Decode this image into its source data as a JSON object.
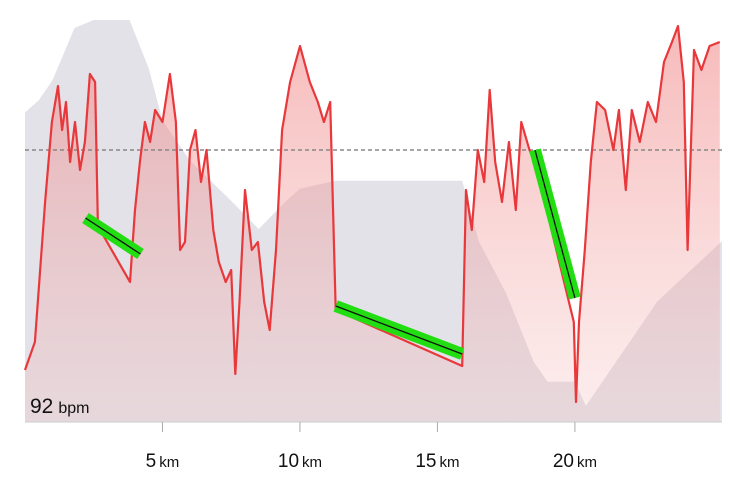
{
  "chart_data": {
    "type": "line",
    "xlim": [
      0,
      25.35
    ],
    "xticks": [
      5,
      10,
      15,
      20
    ],
    "x_unit": "km",
    "ylim": [
      90,
      190.5
    ],
    "y2lim": [
      0,
      100
    ],
    "reference_line": 158,
    "min_label": {
      "value": "92",
      "unit": "bpm"
    },
    "series": [
      {
        "color": "#e8383b",
        "x": [
          0,
          0.36,
          0.73,
          0.98,
          1.2,
          1.35,
          1.49,
          1.64,
          1.82,
          2.0,
          2.18,
          2.36,
          2.55,
          2.65,
          3.82,
          4.0,
          4.18,
          4.36,
          4.55,
          4.73,
          5.0,
          5.27,
          5.49,
          5.64,
          5.82,
          6.0,
          6.2,
          6.4,
          6.6,
          6.85,
          7.05,
          7.3,
          7.5,
          7.65,
          7.8,
          8.0,
          8.25,
          8.47,
          8.7,
          8.9,
          9.13,
          9.35,
          9.64,
          10.0,
          10.36,
          10.65,
          10.87,
          11.1,
          11.3,
          15.9,
          16.04,
          16.25,
          16.47,
          16.7,
          16.9,
          17.1,
          17.35,
          17.6,
          17.85,
          18.05,
          18.35,
          18.55,
          19.96,
          20.04,
          20.15,
          20.36,
          20.58,
          20.8,
          21.1,
          21.4,
          21.6,
          21.85,
          22.07,
          22.36,
          22.65,
          22.95,
          23.24,
          23.53,
          23.75,
          23.96,
          24.1,
          24.33,
          24.6,
          24.9,
          25.27
        ],
        "values": [
          103,
          110,
          145,
          165,
          174,
          163,
          170,
          155,
          165,
          153,
          160,
          177,
          175,
          139,
          125,
          143,
          155,
          165,
          160,
          168,
          165,
          177,
          165,
          133,
          135,
          158,
          163,
          150,
          158,
          138,
          130,
          125,
          128,
          102,
          120,
          148,
          133,
          135,
          120,
          113,
          133,
          163,
          175,
          184,
          175,
          170,
          165,
          170,
          118,
          104,
          148,
          138,
          158,
          150,
          173,
          155,
          145,
          160,
          143,
          165,
          158,
          155,
          115,
          95,
          115,
          133,
          155,
          170,
          168,
          158,
          168,
          148,
          168,
          160,
          170,
          165,
          180,
          185,
          189,
          175,
          133,
          183,
          178,
          184,
          185
        ]
      },
      {
        "color": "#e2e2e8",
        "axis": "y2",
        "x": [
          0,
          0.5,
          1,
          1.8,
          2.5,
          3.8,
          4.5,
          5,
          6,
          7.5,
          8.5,
          9.5,
          10,
          11.3,
          15.9,
          16.5,
          17.5,
          18.5,
          19,
          20,
          20.4,
          21,
          23,
          25.35
        ],
        "values": [
          77,
          80,
          85,
          98,
          100,
          100,
          88,
          75,
          65,
          55,
          48,
          55,
          58,
          60,
          60,
          45,
          32,
          15,
          10,
          10,
          4,
          10,
          30,
          45
        ]
      }
    ],
    "highlights": {
      "color": "#22dd11",
      "segments": [
        {
          "x": [
            2.2,
            4.2
          ],
          "values": [
            141,
            132
          ]
        },
        {
          "x": [
            11.3,
            15.9
          ],
          "values": [
            119,
            107
          ]
        },
        {
          "x": [
            18.55,
            20.0
          ],
          "values": [
            158,
            121
          ]
        }
      ]
    }
  }
}
